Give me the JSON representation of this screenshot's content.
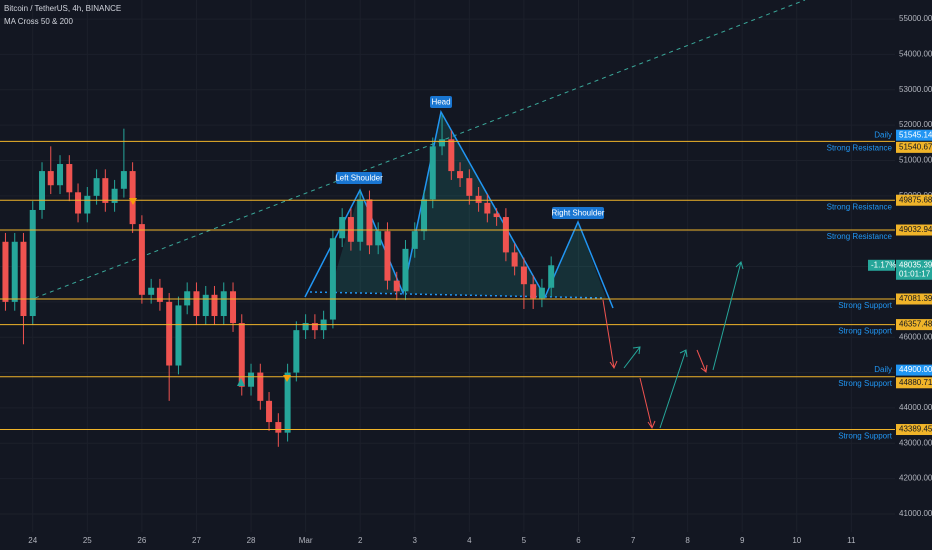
{
  "chart_data": {
    "type": "candlestick",
    "title": "Bitcoin / TetherUS, 4h, BINANCE",
    "subtitle": "MA Cross 50 & 200",
    "up_color": "#26a69a",
    "down_color": "#ef5350",
    "grid": true,
    "x": [
      -0.5,
      -0.33,
      -0.17,
      0,
      0.17,
      0.33,
      0.5,
      0.67,
      0.83,
      1,
      1.17,
      1.33,
      1.5,
      1.67,
      1.83,
      2,
      2.17,
      2.33,
      2.5,
      2.67,
      2.83,
      3,
      3.17,
      3.33,
      3.5,
      3.67,
      3.83,
      4,
      4.17,
      4.33,
      4.5,
      4.67,
      4.83,
      5,
      5.17,
      5.33,
      5.5,
      5.67,
      5.83,
      6,
      6.17,
      6.33,
      6.5,
      6.67,
      6.83,
      7,
      7.17,
      7.33,
      7.5,
      7.67,
      7.83,
      8,
      8.17,
      8.33,
      8.5,
      8.67,
      8.83,
      9,
      9.17,
      9.33,
      9.5
    ],
    "open": [
      48700,
      47000,
      48700,
      46600,
      49600,
      50700,
      50300,
      50900,
      50100,
      49500,
      50000,
      50500,
      49800,
      50200,
      50700,
      49200,
      47200,
      47400,
      47000,
      45200,
      46900,
      47300,
      46600,
      47200,
      46600,
      47300,
      46400,
      44600,
      45000,
      44200,
      43600,
      43300,
      45000,
      46200,
      46400,
      46200,
      46500,
      48800,
      49400,
      48700,
      49900,
      48600,
      49000,
      47600,
      47300,
      48500,
      49000,
      49900,
      51400,
      51600,
      50700,
      50500,
      50000,
      49800,
      49500,
      49400,
      48400,
      48000,
      47500,
      47100,
      47400
    ],
    "high": [
      48950,
      48950,
      48950,
      49850,
      50950,
      51400,
      51150,
      51150,
      50350,
      50250,
      50750,
      50750,
      50450,
      51900,
      50950,
      49450,
      47650,
      47650,
      47250,
      47150,
      47550,
      47550,
      47450,
      47450,
      47550,
      47550,
      46650,
      45250,
      45250,
      44450,
      43850,
      45250,
      46450,
      46650,
      46650,
      46750,
      49050,
      49650,
      49650,
      50150,
      50150,
      49250,
      49250,
      47850,
      48750,
      49250,
      50150,
      51650,
      52300,
      51850,
      50950,
      50750,
      50250,
      50050,
      49650,
      49650,
      48650,
      48250,
      47750,
      47650,
      48285
    ],
    "low": [
      46750,
      46750,
      45800,
      46350,
      49350,
      50050,
      50050,
      49850,
      49250,
      49250,
      49750,
      49550,
      49550,
      49950,
      48950,
      46950,
      46950,
      46750,
      44200,
      44950,
      46650,
      46350,
      46350,
      46350,
      46350,
      46150,
      44350,
      44350,
      43950,
      43350,
      42900,
      43050,
      44750,
      45950,
      45950,
      45950,
      46250,
      48550,
      48450,
      48450,
      48350,
      48350,
      47350,
      47050,
      47050,
      48250,
      48750,
      49650,
      51150,
      50450,
      50250,
      49750,
      49550,
      49250,
      49150,
      48150,
      47750,
      46800,
      46800,
      46850,
      47150
    ],
    "close": [
      47000,
      48700,
      46600,
      49600,
      50700,
      50300,
      50900,
      50100,
      49500,
      50000,
      50500,
      49800,
      50200,
      50700,
      49200,
      47200,
      47400,
      47000,
      45200,
      46900,
      47300,
      46600,
      47200,
      46600,
      47300,
      46400,
      44600,
      45000,
      44200,
      43600,
      43300,
      45000,
      46200,
      46400,
      46200,
      46500,
      48800,
      49400,
      48700,
      49900,
      48600,
      49000,
      47600,
      47300,
      48500,
      49000,
      49900,
      51400,
      51600,
      50700,
      50500,
      50000,
      49800,
      49500,
      49400,
      48400,
      48000,
      47500,
      47100,
      47400,
      48035
    ],
    "xlim": [
      -0.6,
      15.8
    ],
    "xticks": [
      {
        "value": 0,
        "label": "24"
      },
      {
        "value": 1,
        "label": "25"
      },
      {
        "value": 2,
        "label": "26"
      },
      {
        "value": 3,
        "label": "27"
      },
      {
        "value": 4,
        "label": "28"
      },
      {
        "value": 5,
        "label": "Mar"
      },
      {
        "value": 6,
        "label": "2"
      },
      {
        "value": 7,
        "label": "3"
      },
      {
        "value": 8,
        "label": "4"
      },
      {
        "value": 9,
        "label": "5"
      },
      {
        "value": 10,
        "label": "6"
      },
      {
        "value": 11,
        "label": "7"
      },
      {
        "value": 12,
        "label": "8"
      },
      {
        "value": 13,
        "label": "9"
      },
      {
        "value": 14,
        "label": "10"
      },
      {
        "value": 15,
        "label": "11"
      }
    ],
    "ylim": [
      40490,
      55540
    ],
    "yticks": [
      {
        "value": 41000,
        "label": "41000.00"
      },
      {
        "value": 42000,
        "label": "42000.00"
      },
      {
        "value": 43000,
        "label": "43000.00"
      },
      {
        "value": 44000,
        "label": "44000.00"
      },
      {
        "value": 45000,
        "label": "45000.00"
      },
      {
        "value": 46000,
        "label": "46000.00"
      },
      {
        "value": 47000,
        "label": "47000.00"
      },
      {
        "value": 48000,
        "label": "48000.00"
      },
      {
        "value": 49000,
        "label": "49000.00"
      },
      {
        "value": 50000,
        "label": "50000.00"
      },
      {
        "value": 51000,
        "label": "51000.00"
      },
      {
        "value": 52000,
        "label": "52000.00"
      },
      {
        "value": 53000,
        "label": "53000.00"
      },
      {
        "value": 54000,
        "label": "54000.00"
      },
      {
        "value": 55000,
        "label": "55000.00"
      }
    ],
    "level_color": "#f0b429",
    "levels": [
      {
        "value": 51540.67,
        "name": "Strong Resistance"
      },
      {
        "value": 49875.68,
        "name": "Strong Resistance"
      },
      {
        "value": 49032.94,
        "name": "Strong Resistance"
      },
      {
        "value": 47081.39,
        "name": "Strong Support"
      },
      {
        "value": 46357.48,
        "name": "Strong Support"
      },
      {
        "value": 44880.71,
        "name": "Strong Support"
      },
      {
        "value": 43389.45,
        "name": "Strong Support"
      }
    ],
    "daily": {
      "name": "Daily",
      "color": "#2196f3",
      "values": [
        51545.14,
        44900
      ],
      "value_labels": [
        "51545.14",
        "44900.00"
      ]
    },
    "last_price": {
      "value": 48035.39,
      "change": "-1.17%",
      "countdown": "01:01:17"
    },
    "annotations": [
      "Left Shoulder",
      "Head",
      "Right Shoulder"
    ]
  }
}
